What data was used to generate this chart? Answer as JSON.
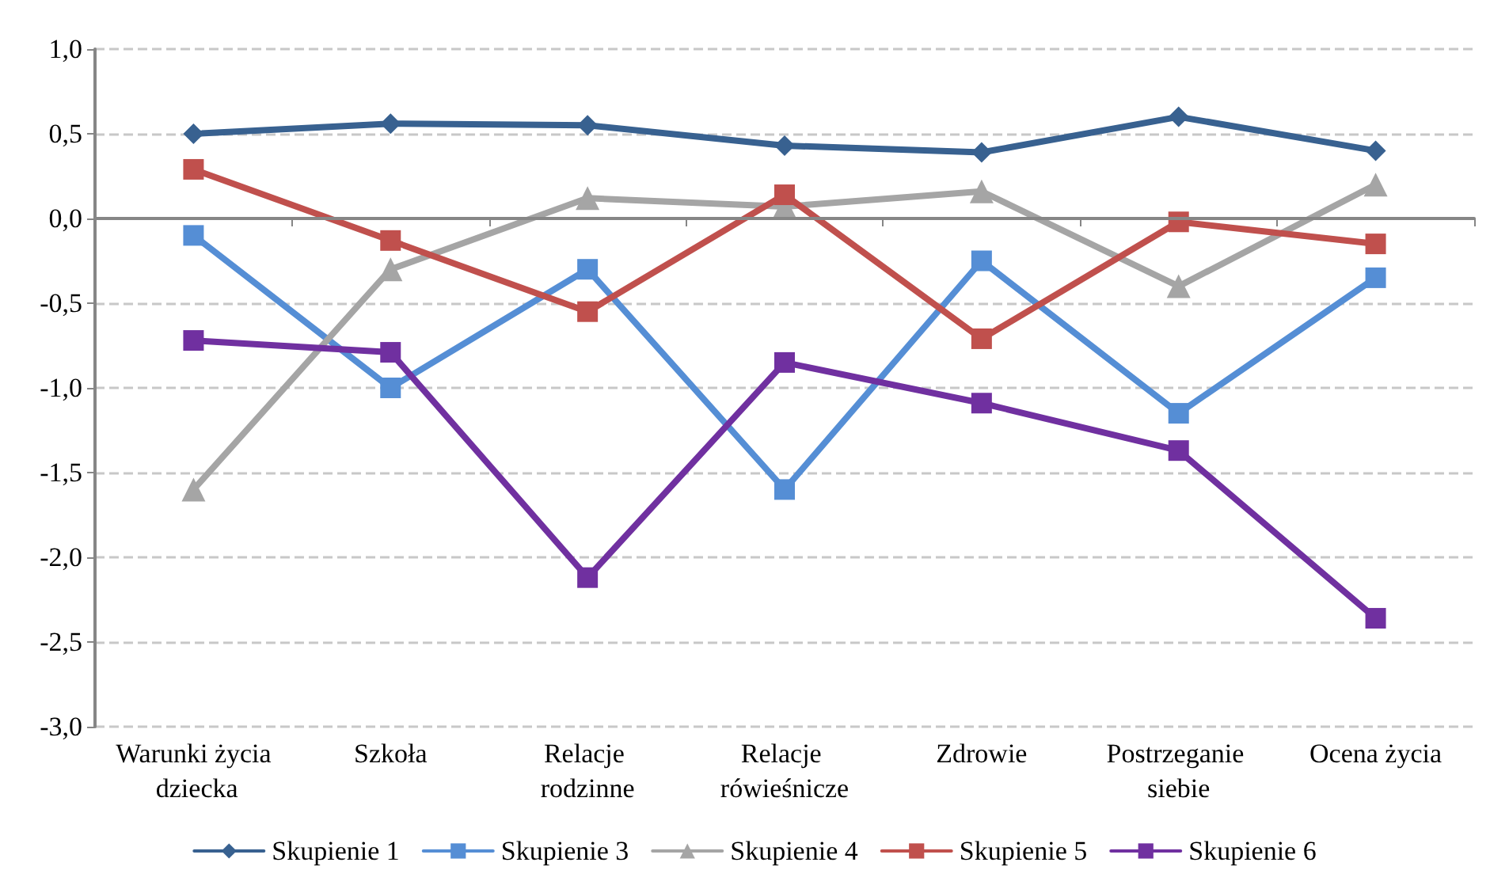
{
  "chart_data": {
    "type": "line",
    "categories": [
      "Warunki życia dziecka",
      "Szkoła",
      "Relacje rodzinne",
      "Relacje rówieśnicze",
      "Zdrowie",
      "Postrzeganie siebie",
      "Ocena życia"
    ],
    "series": [
      {
        "name": "Skupienie 1",
        "color": "#386190",
        "marker": "diamond",
        "values": [
          0.5,
          0.56,
          0.55,
          0.43,
          0.39,
          0.6,
          0.4
        ]
      },
      {
        "name": "Skupienie 3",
        "color": "#558ed5",
        "marker": "square",
        "values": [
          -0.1,
          -1.0,
          -0.3,
          -1.6,
          -0.25,
          -1.15,
          -0.35
        ]
      },
      {
        "name": "Skupienie 4",
        "color": "#a5a5a5",
        "marker": "triangle",
        "values": [
          -1.6,
          -0.3,
          0.12,
          0.07,
          0.16,
          -0.4,
          0.2
        ]
      },
      {
        "name": "Skupienie 5",
        "color": "#c0504d",
        "marker": "square",
        "values": [
          0.29,
          -0.13,
          -0.55,
          0.14,
          -0.71,
          -0.02,
          -0.15
        ]
      },
      {
        "name": "Skupienie 6",
        "color": "#7030a0",
        "marker": "square",
        "values": [
          -0.72,
          -0.79,
          -2.12,
          -0.85,
          -1.09,
          -1.37,
          -2.36
        ]
      }
    ],
    "ylim": [
      -3,
      1
    ],
    "yticks": [
      {
        "value": -3,
        "label": "-3,0"
      },
      {
        "value": -2.5,
        "label": "-2,5"
      },
      {
        "value": -2,
        "label": "-2,0"
      },
      {
        "value": -1.5,
        "label": "-1,5"
      },
      {
        "value": -1,
        "label": "-1,0"
      },
      {
        "value": -0.5,
        "label": "-0,5"
      },
      {
        "value": 0,
        "label": "0,0"
      },
      {
        "value": 0.5,
        "label": "0,5"
      },
      {
        "value": 1,
        "label": "1,0"
      }
    ],
    "grid": "y",
    "legend": "bottom",
    "line_style": "solid"
  }
}
